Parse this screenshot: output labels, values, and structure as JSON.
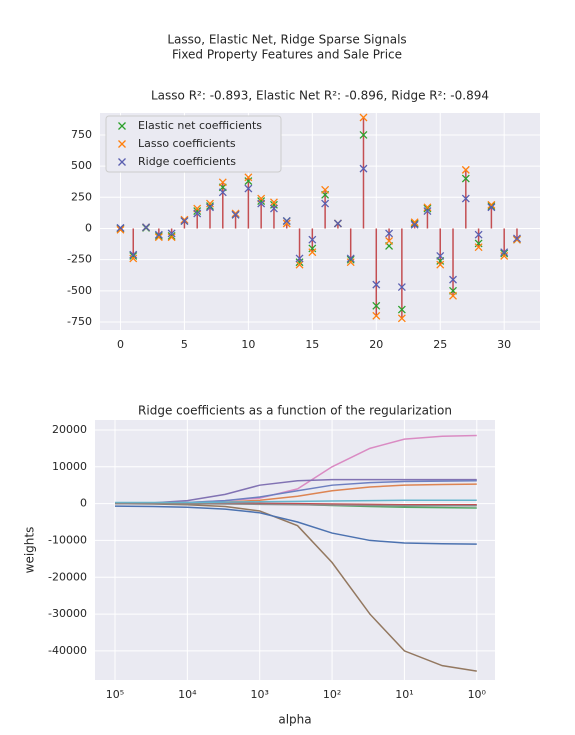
{
  "chart_data": [
    {
      "type": "stem",
      "title": "Lasso, Elastic Net, Ridge Sparse Signals",
      "subtitle": "Fixed Property Features and Sale Price",
      "axes_title": "Lasso R²: -0.893,   Elastic Net R²: -0.896,   Ridge R²: -0.894",
      "x": [
        0,
        1,
        2,
        3,
        4,
        5,
        6,
        7,
        8,
        9,
        10,
        11,
        12,
        13,
        14,
        15,
        16,
        17,
        18,
        19,
        20,
        21,
        22,
        23,
        24,
        25,
        26,
        27,
        28,
        29,
        30,
        31
      ],
      "series": [
        {
          "name": "Elastic net coefficients",
          "color": "#2ca02c",
          "values": [
            0,
            -220,
            5,
            -60,
            -60,
            60,
            140,
            180,
            330,
            110,
            380,
            220,
            190,
            60,
            -270,
            -160,
            270,
            40,
            -250,
            750,
            -620,
            -140,
            -650,
            40,
            160,
            -260,
            -500,
            400,
            -120,
            180,
            -200,
            -90
          ]
        },
        {
          "name": "Lasso coefficients",
          "color": "#ff7f0e",
          "values": [
            -10,
            -240,
            10,
            -70,
            -70,
            70,
            160,
            200,
            370,
            120,
            410,
            240,
            210,
            40,
            -290,
            -190,
            310,
            40,
            -270,
            890,
            -700,
            -100,
            -720,
            50,
            170,
            -290,
            -540,
            470,
            -150,
            190,
            -220,
            -90
          ]
        },
        {
          "name": "Ridge coefficients",
          "color": "#5a5fb0",
          "values": [
            5,
            -210,
            10,
            -50,
            -40,
            60,
            120,
            170,
            290,
            110,
            320,
            200,
            160,
            60,
            -240,
            -90,
            200,
            40,
            -240,
            480,
            -450,
            -40,
            -470,
            30,
            140,
            -220,
            -410,
            240,
            -50,
            170,
            -190,
            -80
          ]
        }
      ],
      "stem_color": "#c44e52",
      "xlim": [
        -1.6,
        32.8
      ],
      "xticks": [
        0,
        5,
        10,
        15,
        20,
        25,
        30
      ],
      "ylim": [
        -814,
        926
      ],
      "yticks": [
        -750,
        -500,
        -250,
        0,
        250,
        500,
        750
      ],
      "grid": true,
      "legend": "upper left"
    },
    {
      "type": "line",
      "title": "Ridge coefficients as a function of the regularization",
      "xlabel": "alpha",
      "ylabel": "weights",
      "xscale": "log",
      "x": [
        100000,
        30000,
        10000,
        3000,
        1000,
        300,
        100,
        30,
        10,
        3,
        1
      ],
      "series": [
        {
          "color": "#da8bc3",
          "values": [
            0,
            100,
            300,
            800,
            1500,
            4000,
            10000,
            15000,
            17500,
            18300,
            18500
          ]
        },
        {
          "color": "#937860",
          "values": [
            0,
            -100,
            -300,
            -800,
            -2000,
            -6000,
            -16000,
            -30000,
            -40000,
            -44000,
            -45500
          ]
        },
        {
          "color": "#4c72b0",
          "values": [
            -700,
            -800,
            -1000,
            -1500,
            -2500,
            -5000,
            -8000,
            -10000,
            -10700,
            -10900,
            -11000
          ]
        },
        {
          "color": "#8172b3",
          "values": [
            0,
            200,
            800,
            2500,
            5000,
            6200,
            6500,
            6500,
            6500,
            6500,
            6500
          ]
        },
        {
          "color": "#6d7fc0",
          "values": [
            0,
            100,
            300,
            800,
            1800,
            3500,
            5000,
            5700,
            6000,
            6100,
            6200
          ]
        },
        {
          "color": "#dd8452",
          "values": [
            0,
            50,
            150,
            400,
            900,
            2000,
            3500,
            4500,
            5000,
            5200,
            5300
          ]
        },
        {
          "color": "#55a868",
          "values": [
            200,
            200,
            150,
            100,
            0,
            -200,
            -500,
            -800,
            -1000,
            -1100,
            -1200
          ]
        },
        {
          "color": "#c44e52",
          "values": [
            100,
            100,
            100,
            100,
            50,
            0,
            -100,
            -200,
            -300,
            -300,
            -300
          ]
        },
        {
          "color": "#64b5cd",
          "values": [
            300,
            300,
            300,
            400,
            500,
            600,
            700,
            800,
            900,
            900,
            900
          ]
        },
        {
          "color": "#8c8c8c",
          "values": [
            0,
            0,
            -50,
            -100,
            -200,
            -300,
            -400,
            -500,
            -600,
            -600,
            -600
          ]
        }
      ],
      "xlim": [
        189000,
        0.56
      ],
      "xticks": [
        {
          "value": 100000,
          "label": "10⁵"
        },
        {
          "value": 10000,
          "label": "10⁴"
        },
        {
          "value": 1000,
          "label": "10³"
        },
        {
          "value": 100,
          "label": "10²"
        },
        {
          "value": 10,
          "label": "10¹"
        },
        {
          "value": 1,
          "label": "10⁰"
        }
      ],
      "ylim": [
        -47900,
        22700
      ],
      "yticks": [
        -40000,
        -30000,
        -20000,
        -10000,
        0,
        10000,
        20000
      ],
      "grid": true
    }
  ]
}
